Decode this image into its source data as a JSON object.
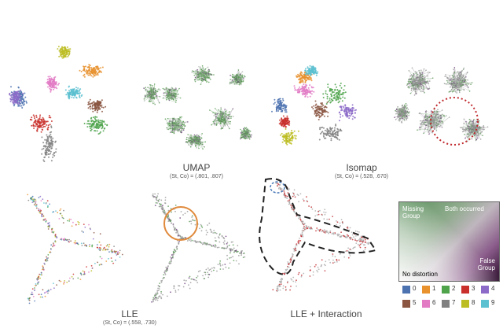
{
  "top_row": {
    "umap": {
      "title": "UMAP",
      "subtitle": "(St, Co) = (.801, .807)"
    },
    "isomap": {
      "title": "Isomap",
      "subtitle": "(St, Co) = (.528, .670)"
    }
  },
  "bottom_row": {
    "lle": {
      "title": "LLE",
      "subtitle": "(St, Co) = (.558, .730)"
    },
    "lle_interaction": {
      "title": "LLE + Interaction"
    }
  },
  "legend": {
    "missing_group": "Missing\nGroup",
    "both_occurred": "Both occurred",
    "false_group": "False\nGroup",
    "no_distortion": "No distortion",
    "classes": [
      {
        "label": "0",
        "color": "#4c72b0"
      },
      {
        "label": "1",
        "color": "#e8912d"
      },
      {
        "label": "2",
        "color": "#4ea34b"
      },
      {
        "label": "3",
        "color": "#c9302c"
      },
      {
        "label": "4",
        "color": "#8c6bc8"
      },
      {
        "label": "5",
        "color": "#8a5642"
      },
      {
        "label": "6",
        "color": "#e27ac4"
      },
      {
        "label": "7",
        "color": "#808080"
      },
      {
        "label": "8",
        "color": "#bcbd22"
      },
      {
        "label": "9",
        "color": "#5bc0d0"
      }
    ]
  },
  "colors": {
    "distortion_green": "#5a9a55",
    "distortion_purple": "#6b3b7a",
    "highlight_red_circle": "#c0282d",
    "highlight_orange_circle": "#e08a3c",
    "highlight_blue_circle": "#4a7ab8",
    "interaction_outline": "#222222"
  }
}
